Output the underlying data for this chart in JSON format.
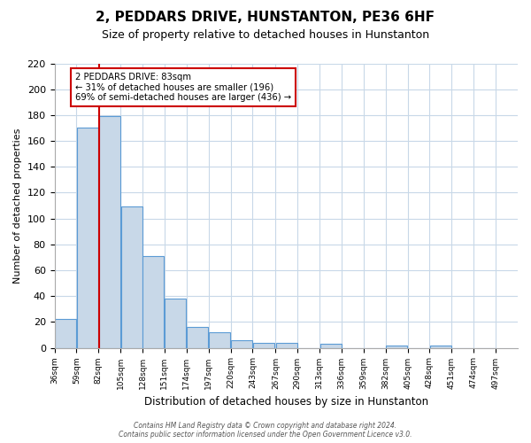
{
  "title": "2, PEDDARS DRIVE, HUNSTANTON, PE36 6HF",
  "subtitle": "Size of property relative to detached houses in Hunstanton",
  "xlabel": "Distribution of detached houses by size in Hunstanton",
  "ylabel": "Number of detached properties",
  "bar_values": [
    22,
    170,
    179,
    109,
    71,
    38,
    16,
    12,
    6,
    4,
    4,
    0,
    3,
    0,
    0,
    2,
    0,
    2,
    0,
    0
  ],
  "bin_labels": [
    "36sqm",
    "59sqm",
    "82sqm",
    "105sqm",
    "128sqm",
    "151sqm",
    "174sqm",
    "197sqm",
    "220sqm",
    "243sqm",
    "267sqm",
    "290sqm",
    "313sqm",
    "336sqm",
    "359sqm",
    "382sqm",
    "405sqm",
    "428sqm",
    "451sqm",
    "474sqm",
    "497sqm"
  ],
  "bin_edges": [
    36,
    59,
    82,
    105,
    128,
    151,
    174,
    197,
    220,
    243,
    267,
    290,
    313,
    336,
    359,
    382,
    405,
    428,
    451,
    474,
    497
  ],
  "bar_color": "#c8d8e8",
  "bar_edge_color": "#5b9bd5",
  "property_value": 83,
  "red_line_color": "#cc0000",
  "annotation_text": "2 PEDDARS DRIVE: 83sqm\n← 31% of detached houses are smaller (196)\n69% of semi-detached houses are larger (436) →",
  "annotation_box_color": "#ffffff",
  "annotation_box_edge": "#cc0000",
  "ylim": [
    0,
    220
  ],
  "yticks": [
    0,
    20,
    40,
    60,
    80,
    100,
    120,
    140,
    160,
    180,
    200,
    220
  ],
  "footer": "Contains HM Land Registry data © Crown copyright and database right 2024.\nContains public sector information licensed under the Open Government Licence v3.0.",
  "background_color": "#ffffff",
  "grid_color": "#c8d8e8"
}
